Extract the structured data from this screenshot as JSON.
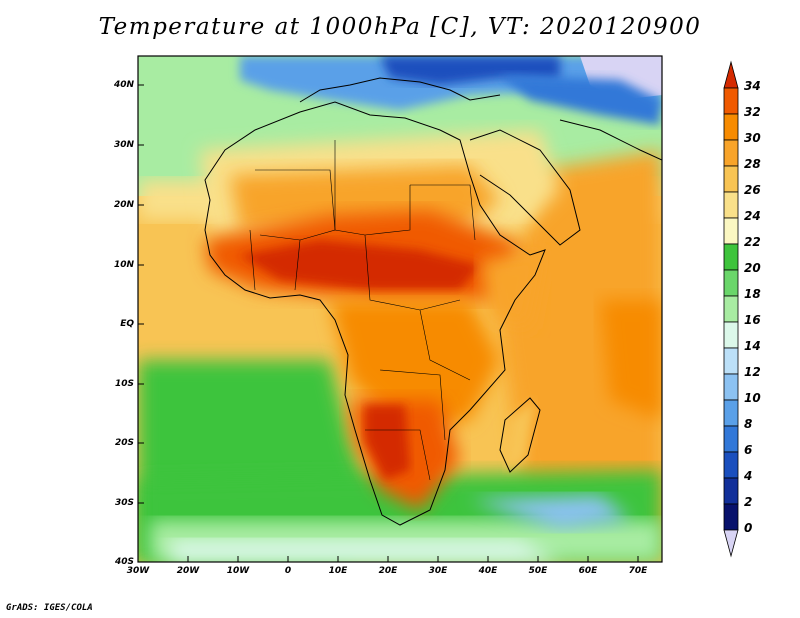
{
  "title": "Temperature at 1000hPa [C], VT: 2020120900",
  "credit": "GrADS: IGES/COLA",
  "latitude_labels": [
    "40N",
    "30N",
    "20N",
    "10N",
    "EQ",
    "10S",
    "20S",
    "30S",
    "40S"
  ],
  "longitude_labels": [
    "30W",
    "20W",
    "10W",
    "0",
    "10E",
    "20E",
    "30E",
    "40E",
    "50E",
    "60E",
    "70E"
  ],
  "colorbar": {
    "labels": [
      "34",
      "32",
      "30",
      "28",
      "26",
      "24",
      "22",
      "20",
      "18",
      "16",
      "14",
      "12",
      "10",
      "8",
      "6",
      "4",
      "2",
      "0"
    ],
    "colors": [
      "#d42a00",
      "#f05a00",
      "#f78b00",
      "#f8a42a",
      "#f8c454",
      "#f9e08a",
      "#fbf7c2",
      "#3ec43c",
      "#6ad66a",
      "#a8eca2",
      "#dcf8ea",
      "#bce0f8",
      "#8cc2f2",
      "#5aa0e8",
      "#3278d8",
      "#1a4fbe",
      "#12309a",
      "#08126c",
      "#d8d4f4"
    ]
  },
  "chart_data": {
    "type": "heatmap",
    "title": "Temperature at 1000hPa [C], VT: 2020120900",
    "variable": "Temperature at 1000hPa",
    "units": "C",
    "valid_time": "2020120900",
    "lon_range": [
      -30,
      75
    ],
    "lat_range": [
      -40,
      45
    ],
    "x_ticks": [
      "30W",
      "20W",
      "10W",
      "0",
      "10E",
      "20E",
      "30E",
      "40E",
      "50E",
      "60E",
      "70E"
    ],
    "y_ticks": [
      "40N",
      "30N",
      "20N",
      "10N",
      "EQ",
      "10S",
      "20S",
      "30S",
      "40S"
    ],
    "color_levels": [
      0,
      2,
      4,
      6,
      8,
      10,
      12,
      14,
      16,
      18,
      20,
      22,
      24,
      26,
      28,
      30,
      32,
      34
    ],
    "features": [
      "warmest (30-34 C) across Sahel / central Africa near 10N and in Namibia-Botswana near 20S",
      "coolest (0-10 C) over Europe and Turkey north of 35N",
      "cool ocean (16-20 C) in South Atlantic west of southern Africa"
    ]
  }
}
